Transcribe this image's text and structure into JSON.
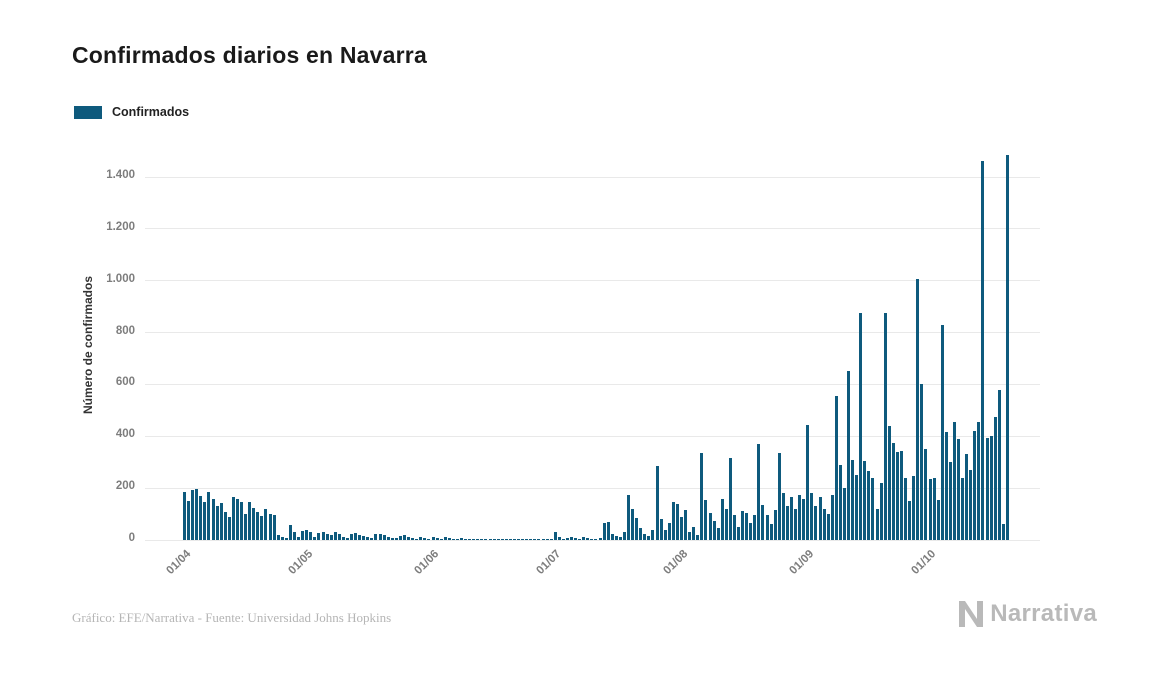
{
  "title": "Confirmados diarios en Navarra",
  "legend": {
    "label": "Confirmados"
  },
  "colors": {
    "accent": "#0e5a7d",
    "grid": "#e9e9e9",
    "tick_text": "#7d7d7d",
    "title_text": "#1a1a1a"
  },
  "footer": {
    "source": "Gráfico: EFE/Narrativa - Fuente: Universidad Johns Hopkins",
    "brand": "Narrativa"
  },
  "chart_data": {
    "type": "bar",
    "title": "Confirmados diarios en Navarra",
    "xlabel": "",
    "ylabel": "Número de confirmados",
    "legend_entries": [
      "Confirmados"
    ],
    "legend_position": "top-left",
    "grid": "horizontal",
    "bar_color": "#0e5a7d",
    "ylim": [
      0,
      1500
    ],
    "yticks": [
      0,
      200,
      400,
      600,
      800,
      1000,
      1200,
      1400
    ],
    "ytick_labels": [
      "0",
      "200",
      "400",
      "600",
      "800",
      "1.000",
      "1.200",
      "1.400"
    ],
    "xticks": [
      "01/04",
      "01/05",
      "01/06",
      "01/07",
      "01/08",
      "01/09",
      "01/10"
    ],
    "months": [
      {
        "label": "01/04",
        "values": [
          185,
          150,
          192,
          195,
          170,
          148,
          185,
          160,
          130,
          142,
          108,
          90,
          165,
          158,
          146,
          100,
          148,
          125,
          108,
          92,
          118,
          100,
          95,
          20,
          12,
          8,
          58,
          30,
          10,
          35
        ]
      },
      {
        "label": "01/05",
        "values": [
          38,
          30,
          12,
          28,
          32,
          25,
          18,
          30,
          22,
          12,
          8,
          25,
          28,
          20,
          15,
          10,
          8,
          22,
          25,
          18,
          12,
          8,
          6,
          15,
          18,
          12,
          8,
          5,
          12,
          8,
          5
        ]
      },
      {
        "label": "01/06",
        "values": [
          12,
          8,
          5,
          10,
          6,
          3,
          2,
          8,
          5,
          4,
          2,
          1,
          5,
          4,
          3,
          2,
          1,
          1,
          3,
          2,
          1,
          1,
          2,
          1,
          1,
          3,
          2,
          1,
          1,
          2
        ]
      },
      {
        "label": "01/07",
        "values": [
          30,
          10,
          5,
          8,
          12,
          6,
          4,
          10,
          8,
          5,
          3,
          8,
          65,
          70,
          25,
          15,
          10,
          30,
          175,
          120,
          85,
          45,
          25,
          15,
          40,
          285,
          80,
          40,
          65,
          145,
          140
        ]
      },
      {
        "label": "01/08",
        "values": [
          90,
          115,
          30,
          50,
          20,
          335,
          155,
          105,
          75,
          45,
          160,
          120,
          315,
          95,
          50,
          110,
          105,
          65,
          95,
          370,
          135,
          95,
          60,
          115,
          335,
          180,
          130,
          165,
          120,
          175,
          160
        ]
      },
      {
        "label": "01/09",
        "values": [
          445,
          180,
          130,
          165,
          120,
          100,
          175,
          555,
          290,
          200,
          650,
          310,
          250,
          875,
          305,
          265,
          240,
          120,
          220,
          875,
          440,
          375,
          340,
          345,
          240,
          150,
          245,
          1005,
          600,
          350
        ]
      },
      {
        "label": "01/10",
        "values": [
          235,
          240,
          155,
          830,
          415,
          300,
          455,
          390,
          240,
          330,
          270,
          420,
          455,
          1460,
          395,
          400,
          475,
          580,
          60,
          1485
        ]
      }
    ]
  }
}
